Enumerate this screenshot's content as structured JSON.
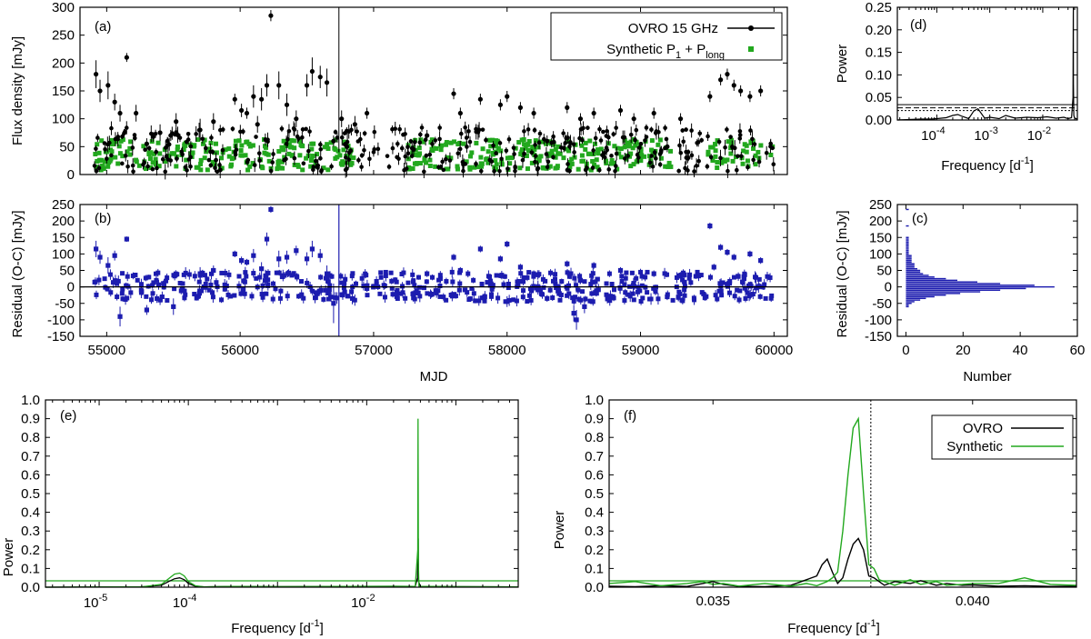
{
  "colors": {
    "ovro": "#000000",
    "synthetic": "#22a81e",
    "residual": "#1c1caf",
    "axis": "#000000"
  },
  "chart_data": [
    {
      "id": "a",
      "type": "scatter",
      "panel_label": "(a)",
      "xlabel": "",
      "ylabel": "Flux density [mJy]",
      "xlim": [
        54800,
        60100
      ],
      "ylim": [
        0,
        300
      ],
      "yticks": [
        0,
        50,
        100,
        150,
        200,
        250,
        300
      ],
      "xticks": [
        55000,
        56000,
        57000,
        58000,
        59000,
        60000
      ],
      "show_xtick_labels": false,
      "legend": {
        "position": "top-right",
        "entries": [
          "OVRO 15 GHz",
          "Synthetic P"
        ],
        "sub1": "1",
        "mid": " + P",
        "sub2": "long"
      },
      "series": [
        {
          "name": "OVRO 15 GHz",
          "style": "points-errorbars",
          "x": [
            54920,
            54950,
            55010,
            55060,
            55100,
            55150,
            55220,
            55400,
            55480,
            55520,
            55700,
            55800,
            55960,
            56010,
            56050,
            56100,
            56130,
            56160,
            56200,
            56230,
            56290,
            56350,
            56420,
            56500,
            56540,
            56600,
            56650,
            56700,
            56760,
            56860,
            56950,
            57400,
            57600,
            57650,
            57800,
            57950,
            58000,
            58100,
            58200,
            58450,
            58550,
            58650,
            58850,
            58950,
            59100,
            59300,
            59520,
            59600,
            59650,
            59700,
            59750,
            59820,
            59900,
            55300,
            56800,
            57300,
            58300,
            59200
          ],
          "y": [
            180,
            150,
            160,
            130,
            110,
            210,
            110,
            75,
            70,
            95,
            80,
            95,
            135,
            115,
            110,
            140,
            90,
            135,
            160,
            285,
            160,
            125,
            100,
            160,
            185,
            175,
            165,
            60,
            100,
            90,
            110,
            70,
            145,
            110,
            135,
            125,
            140,
            120,
            110,
            120,
            100,
            110,
            115,
            100,
            110,
            100,
            140,
            170,
            180,
            160,
            150,
            140,
            150,
            55,
            50,
            45,
            60,
            50
          ],
          "err": [
            25,
            20,
            25,
            15,
            15,
            8,
            15,
            15,
            10,
            15,
            20,
            15,
            10,
            12,
            10,
            20,
            15,
            20,
            20,
            10,
            25,
            20,
            15,
            20,
            25,
            20,
            25,
            10,
            15,
            15,
            10,
            10,
            10,
            10,
            10,
            10,
            10,
            10,
            10,
            10,
            10,
            10,
            10,
            10,
            10,
            10,
            10,
            10,
            10,
            10,
            10,
            10,
            10,
            10,
            10,
            10,
            10,
            10
          ]
        }
      ]
    },
    {
      "id": "b",
      "type": "scatter",
      "panel_label": "(b)",
      "xlabel": "MJD",
      "ylabel": "Residual (O-C) [mJy]",
      "xlim": [
        54800,
        60100
      ],
      "ylim": [
        -150,
        250
      ],
      "yticks": [
        -150,
        -100,
        -50,
        0,
        50,
        100,
        150,
        200,
        250
      ],
      "xticks": [
        55000,
        56000,
        57000,
        58000,
        59000,
        60000
      ],
      "series": [
        {
          "name": "Residual",
          "style": "points-errorbars",
          "x": [
            54920,
            54950,
            55010,
            55060,
            55150,
            55300,
            55400,
            55700,
            55800,
            55960,
            56010,
            56050,
            56100,
            56160,
            56200,
            56230,
            56290,
            56350,
            56420,
            56500,
            56540,
            56600,
            56650,
            56950,
            57400,
            57600,
            57650,
            57800,
            57950,
            58000,
            58100,
            58200,
            58450,
            58550,
            58650,
            58850,
            59100,
            59300,
            59520,
            59550,
            59600,
            59650,
            59700,
            59820,
            59900,
            55100,
            55500,
            56700,
            57300,
            58300,
            58500,
            59200,
            58520,
            58580
          ],
          "y": [
            115,
            90,
            65,
            95,
            145,
            -70,
            -40,
            40,
            50,
            100,
            80,
            75,
            95,
            55,
            145,
            235,
            85,
            90,
            110,
            85,
            115,
            95,
            40,
            -5,
            40,
            90,
            50,
            115,
            85,
            130,
            60,
            40,
            70,
            20,
            65,
            50,
            40,
            35,
            185,
            60,
            120,
            105,
            90,
            100,
            80,
            -90,
            -60,
            -50,
            -20,
            -35,
            -80,
            -30,
            -100,
            -60
          ],
          "err": [
            25,
            20,
            25,
            15,
            8,
            15,
            15,
            20,
            15,
            10,
            12,
            10,
            20,
            20,
            20,
            10,
            25,
            20,
            15,
            20,
            25,
            20,
            25,
            10,
            10,
            10,
            10,
            10,
            10,
            10,
            10,
            10,
            10,
            10,
            10,
            10,
            10,
            10,
            10,
            10,
            10,
            10,
            10,
            10,
            10,
            30,
            25,
            60,
            10,
            10,
            25,
            10,
            30,
            20
          ]
        }
      ],
      "horizontal_line": 0
    },
    {
      "id": "c",
      "type": "bar",
      "orientation": "horizontal",
      "panel_label": "(c)",
      "xlabel": "Number",
      "ylabel": "Residual (O-C) [mJy]",
      "xlim": [
        -3,
        60
      ],
      "ylim": [
        -150,
        250
      ],
      "xticks": [
        0,
        20,
        40,
        60
      ],
      "yticks": [
        -150,
        -100,
        -50,
        0,
        50,
        100,
        150,
        200,
        250
      ],
      "bin_centers": [
        -60,
        -55,
        -50,
        -45,
        -40,
        -35,
        -30,
        -25,
        -20,
        -15,
        -10,
        -5,
        0,
        5,
        10,
        15,
        20,
        25,
        30,
        35,
        40,
        45,
        50,
        55,
        60,
        65,
        70,
        75,
        80,
        85,
        90,
        95,
        100,
        105,
        110,
        115,
        120,
        125,
        130,
        135,
        140,
        145,
        150,
        185,
        235
      ],
      "counts": [
        1,
        1,
        2,
        3,
        5,
        7,
        10,
        14,
        19,
        26,
        33,
        42,
        52,
        45,
        33,
        25,
        18,
        14,
        10,
        8,
        6,
        5,
        5,
        4,
        3,
        3,
        3,
        2,
        2,
        2,
        2,
        2,
        1,
        1,
        1,
        1,
        1,
        1,
        1,
        1,
        1,
        1,
        1,
        1,
        1
      ]
    },
    {
      "id": "d",
      "type": "line",
      "panel_label": "(d)",
      "xlabel": "Frequency [d",
      "xlabel_sup": "-1",
      "xlabel_end": "]",
      "ylabel": "Power",
      "xscale": "log",
      "xlim": [
        1.8e-05,
        0.045
      ],
      "ylim": [
        0,
        0.25
      ],
      "yticks": [
        0,
        0.05,
        0.1,
        0.15,
        0.2,
        0.25
      ],
      "ytick_labels": [
        "0.00",
        "0.05",
        "0.10",
        "0.15",
        "0.20",
        "0.25"
      ],
      "xtick_exps": [
        -4,
        -3,
        -2
      ],
      "significance_levels": [
        0.034,
        0.027,
        0.021
      ],
      "series": [
        {
          "name": "OVRO",
          "x": [
            1.8e-05,
            3e-05,
            5e-05,
            8e-05,
            0.0001,
            0.00015,
            0.0002,
            0.00025,
            0.0003,
            0.0004,
            0.0005,
            0.0006,
            0.0008,
            0.001,
            0.0015,
            0.002,
            0.003,
            0.005,
            0.008,
            0.012,
            0.018,
            0.025,
            0.03,
            0.035,
            0.0372,
            0.0376,
            0.0378,
            0.038,
            0.0385,
            0.04,
            0.045
          ],
          "y": [
            0,
            0.001,
            0.002,
            0.002,
            0.003,
            0.005,
            0.01,
            0.012,
            0.008,
            0.003,
            0.02,
            0.025,
            0.004,
            0.006,
            0.003,
            0.01,
            0.004,
            0.006,
            0.005,
            0.007,
            0.004,
            0.006,
            0.003,
            0.005,
            0.05,
            0.23,
            0.26,
            0.08,
            0.01,
            0.004,
            0.002
          ]
        }
      ]
    },
    {
      "id": "e",
      "type": "line",
      "panel_label": "(e)",
      "xlabel": "Frequency [d",
      "xlabel_sup": "-1",
      "xlabel_end": "]",
      "ylabel": "Power",
      "xscale": "log",
      "xlim": [
        2.5e-06,
        0.5
      ],
      "ylim": [
        0,
        1.0
      ],
      "yticks": [
        0,
        0.1,
        0.2,
        0.3,
        0.4,
        0.5,
        0.6,
        0.7,
        0.8,
        0.9,
        1.0
      ],
      "ytick_labels": [
        "0.0",
        "0.1",
        "0.2",
        "0.3",
        "0.4",
        "0.5",
        "0.6",
        "0.7",
        "0.8",
        "0.9",
        "1.0"
      ],
      "xtick_exps": [
        -5,
        -4,
        -2
      ],
      "significance_level": 0.034,
      "series": [
        {
          "name": "OVRO",
          "x": [
            2.5e-06,
            3e-05,
            5e-05,
            6e-05,
            7e-05,
            8e-05,
            9e-05,
            0.0001,
            0.00012,
            0.00015,
            0.0003,
            0.001,
            0.005,
            0.02,
            0.035,
            0.0372,
            0.0376,
            0.0378,
            0.0381,
            0.04,
            0.1,
            0.5
          ],
          "y": [
            0,
            0.002,
            0.01,
            0.03,
            0.045,
            0.05,
            0.04,
            0.02,
            0.005,
            0.002,
            0.004,
            0.003,
            0.004,
            0.005,
            0.004,
            0.05,
            0.23,
            0.26,
            0.03,
            0.005,
            0.003,
            0.002
          ]
        },
        {
          "name": "Synthetic",
          "x": [
            2.5e-06,
            3e-05,
            5e-05,
            6e-05,
            7e-05,
            8e-05,
            9e-05,
            0.0001,
            0.00012,
            0.00015,
            0.0003,
            0.001,
            0.005,
            0.02,
            0.035,
            0.0374,
            0.0376,
            0.0378,
            0.038,
            0.0385,
            0.1,
            0.5
          ],
          "y": [
            0,
            0.002,
            0.015,
            0.045,
            0.07,
            0.075,
            0.06,
            0.03,
            0.008,
            0.002,
            0.004,
            0.003,
            0.004,
            0.005,
            0.004,
            0.2,
            0.9,
            0.55,
            0.12,
            0.005,
            0.003,
            0.002
          ]
        }
      ]
    },
    {
      "id": "f",
      "type": "line",
      "panel_label": "(f)",
      "xlabel": "Frequency [d",
      "xlabel_sup": "-1",
      "xlabel_end": "]",
      "ylabel": "Power",
      "xlim": [
        0.033,
        0.042
      ],
      "ylim": [
        0,
        1.0
      ],
      "yticks": [
        0,
        0.1,
        0.2,
        0.3,
        0.4,
        0.5,
        0.6,
        0.7,
        0.8,
        0.9,
        1.0
      ],
      "ytick_labels": [
        "0.0",
        "0.1",
        "0.2",
        "0.3",
        "0.4",
        "0.5",
        "0.6",
        "0.7",
        "0.8",
        "0.9",
        "1.0"
      ],
      "xticks": [
        0.035,
        0.04
      ],
      "xtick_labels": [
        "0.035",
        "0.040"
      ],
      "vertical_line": 0.03804,
      "significance_level": 0.034,
      "legend": {
        "position": "top-right",
        "entries": [
          "OVRO",
          "Synthetic"
        ]
      },
      "series": [
        {
          "name": "OVRO",
          "x": [
            0.033,
            0.0335,
            0.034,
            0.0345,
            0.0348,
            0.035,
            0.0352,
            0.0355,
            0.036,
            0.0365,
            0.0368,
            0.037,
            0.0371,
            0.0372,
            0.0373,
            0.0374,
            0.0375,
            0.0376,
            0.0377,
            0.0378,
            0.0379,
            0.038,
            0.0381,
            0.0382,
            0.0383,
            0.0385,
            0.0388,
            0.039,
            0.0393,
            0.0395,
            0.0398,
            0.04,
            0.0405,
            0.041,
            0.0415,
            0.042
          ],
          "y": [
            0.005,
            0.003,
            0.008,
            0.004,
            0.02,
            0.03,
            0.015,
            0.005,
            0.003,
            0.01,
            0.04,
            0.06,
            0.12,
            0.15,
            0.08,
            0.02,
            0.05,
            0.15,
            0.23,
            0.26,
            0.2,
            0.06,
            0.05,
            0.03,
            0.01,
            0.03,
            0.02,
            0.035,
            0.01,
            0.02,
            0.01,
            0.012,
            0.005,
            0.008,
            0.004,
            0.006
          ]
        },
        {
          "name": "Synthetic",
          "x": [
            0.033,
            0.0335,
            0.034,
            0.0345,
            0.0348,
            0.035,
            0.0352,
            0.0355,
            0.036,
            0.0365,
            0.0368,
            0.037,
            0.0372,
            0.0373,
            0.0374,
            0.0375,
            0.0376,
            0.0377,
            0.0378,
            0.0379,
            0.038,
            0.0381,
            0.0382,
            0.0383,
            0.0385,
            0.0388,
            0.039,
            0.0393,
            0.0395,
            0.0398,
            0.04,
            0.0405,
            0.041,
            0.0415,
            0.042
          ],
          "y": [
            0.02,
            0.03,
            0.008,
            0.02,
            0.03,
            0.015,
            0.02,
            0.006,
            0.02,
            0.005,
            0.02,
            0.008,
            0.03,
            0.05,
            0.08,
            0.3,
            0.6,
            0.85,
            0.9,
            0.5,
            0.12,
            0.1,
            0.04,
            0.03,
            0.01,
            0.04,
            0.015,
            0.03,
            0.01,
            0.015,
            0.02,
            0.02,
            0.05,
            0.015,
            0.01
          ]
        }
      ]
    }
  ]
}
